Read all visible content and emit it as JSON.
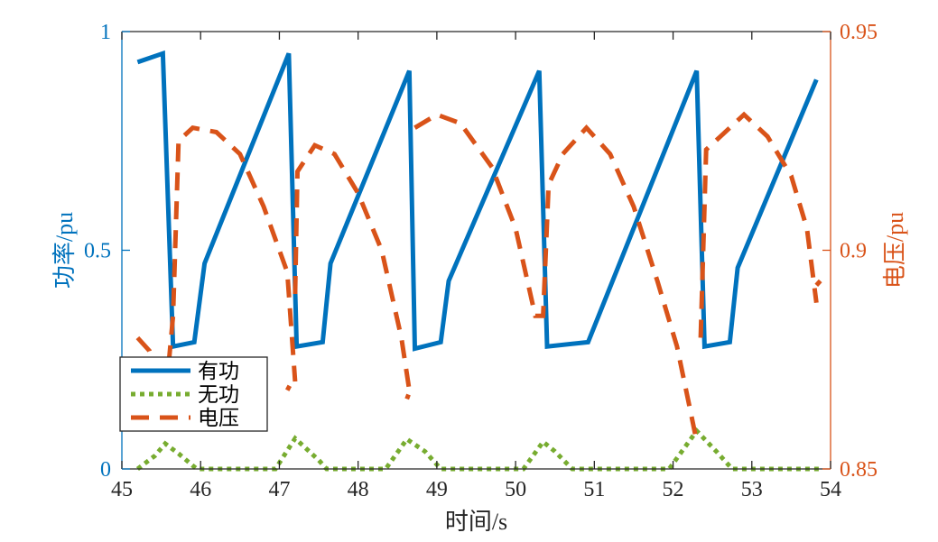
{
  "chart_data": {
    "type": "line",
    "title": "",
    "xlabel": "时间/s",
    "ylabel_left": "功率/pu",
    "ylabel_right": "电压/pu",
    "xlim": [
      45,
      54
    ],
    "ylim_left": [
      0,
      1
    ],
    "ylim_right": [
      0.85,
      0.95
    ],
    "xticks": [
      "45",
      "46",
      "47",
      "48",
      "49",
      "50",
      "51",
      "52",
      "53",
      "54"
    ],
    "yticks_left": [
      "0",
      "0.5",
      "1"
    ],
    "yticks_right": [
      "0.85",
      "0.9",
      "0.95"
    ],
    "grid": false,
    "legend_position": "bottom-left",
    "colors": {
      "p": "#0072BD",
      "q": "#77AC30",
      "v": "#D95319",
      "axis_left": "#0072BD",
      "axis_right": "#D95319"
    },
    "series": [
      {
        "name": "有功",
        "axis": "left",
        "style": "solid",
        "points": [
          [
            45.2,
            0.93
          ],
          [
            45.52,
            0.95
          ],
          [
            45.65,
            0.28
          ],
          [
            45.92,
            0.29
          ],
          [
            46.05,
            0.47
          ],
          [
            47.12,
            0.95
          ],
          [
            47.22,
            0.28
          ],
          [
            47.55,
            0.29
          ],
          [
            47.65,
            0.47
          ],
          [
            48.65,
            0.91
          ],
          [
            48.72,
            0.275
          ],
          [
            49.05,
            0.29
          ],
          [
            49.15,
            0.43
          ],
          [
            50.3,
            0.91
          ],
          [
            50.4,
            0.28
          ],
          [
            50.92,
            0.29
          ],
          [
            52.3,
            0.91
          ],
          [
            52.4,
            0.28
          ],
          [
            52.72,
            0.29
          ],
          [
            52.82,
            0.46
          ],
          [
            53.82,
            0.89
          ]
        ]
      },
      {
        "name": "无功",
        "axis": "left",
        "style": "dotted",
        "points": [
          [
            45.2,
            0
          ],
          [
            45.42,
            0.03
          ],
          [
            45.55,
            0.058
          ],
          [
            45.72,
            0.035
          ],
          [
            45.95,
            0
          ],
          [
            46.95,
            0
          ],
          [
            47.2,
            0.07
          ],
          [
            47.5,
            0.02
          ],
          [
            47.6,
            0
          ],
          [
            48.35,
            0
          ],
          [
            48.62,
            0.068
          ],
          [
            48.85,
            0.04
          ],
          [
            49.05,
            0
          ],
          [
            50.1,
            0
          ],
          [
            50.35,
            0.062
          ],
          [
            50.5,
            0.04
          ],
          [
            50.72,
            0
          ],
          [
            51.95,
            0
          ],
          [
            52.3,
            0.087
          ],
          [
            52.55,
            0.04
          ],
          [
            52.75,
            0
          ],
          [
            53.85,
            0
          ]
        ]
      },
      {
        "name": "电压",
        "axis": "right",
        "style": "dashed",
        "segments": [
          [
            [
              45.2,
              0.88
            ],
            [
              45.35,
              0.877
            ],
            [
              45.5,
              0.868
            ],
            [
              45.6,
              0.875
            ],
            [
              45.65,
              0.885
            ],
            [
              45.72,
              0.925
            ],
            [
              45.9,
              0.928
            ],
            [
              46.2,
              0.927
            ],
            [
              46.5,
              0.922
            ],
            [
              46.8,
              0.91
            ],
            [
              47.1,
              0.895
            ],
            [
              47.2,
              0.87
            ]
          ],
          [
            [
              47.1,
              0.868
            ],
            [
              47.13,
              0.869
            ]
          ],
          [
            [
              47.2,
              0.89
            ],
            [
              47.23,
              0.918
            ],
            [
              47.45,
              0.924
            ],
            [
              47.7,
              0.922
            ],
            [
              48.0,
              0.913
            ],
            [
              48.3,
              0.9
            ],
            [
              48.55,
              0.88
            ],
            [
              48.65,
              0.868
            ]
          ],
          [
            [
              48.62,
              0.866
            ],
            [
              48.64,
              0.867
            ]
          ],
          [
            [
              48.72,
              0.928
            ],
            [
              49.0,
              0.931
            ],
            [
              49.3,
              0.929
            ],
            [
              49.7,
              0.919
            ],
            [
              50.0,
              0.905
            ],
            [
              50.25,
              0.885
            ],
            [
              50.35,
              0.885
            ],
            [
              50.42,
              0.915
            ],
            [
              50.6,
              0.922
            ],
            [
              50.9,
              0.928
            ],
            [
              51.2,
              0.922
            ],
            [
              51.5,
              0.91
            ],
            [
              51.8,
              0.893
            ],
            [
              52.05,
              0.878
            ],
            [
              52.2,
              0.865
            ],
            [
              52.28,
              0.858
            ]
          ],
          [
            [
              52.35,
              0.88
            ],
            [
              52.42,
              0.923
            ],
            [
              52.6,
              0.926
            ],
            [
              52.9,
              0.931
            ],
            [
              53.2,
              0.926
            ],
            [
              53.5,
              0.917
            ],
            [
              53.7,
              0.905
            ],
            [
              53.82,
              0.888
            ]
          ],
          [
            [
              53.82,
              0.892
            ],
            [
              53.87,
              0.893
            ]
          ]
        ]
      }
    ]
  }
}
